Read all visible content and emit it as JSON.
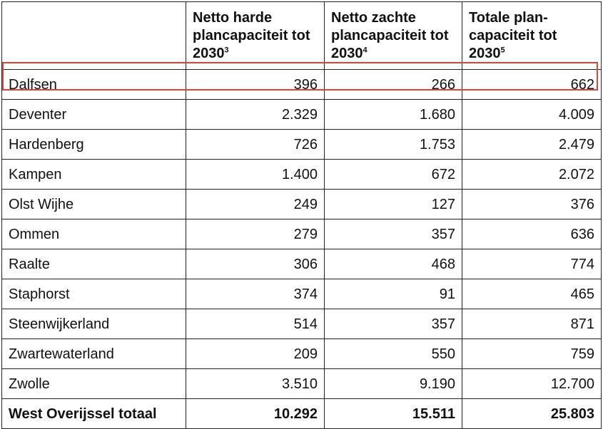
{
  "table": {
    "headers": [
      {
        "label": "",
        "sup": ""
      },
      {
        "label": "Netto harde plancapaciteit tot 2030",
        "sup": "3"
      },
      {
        "label": "Netto zachte plancapaciteit tot 2030",
        "sup": "4"
      },
      {
        "label": "Totale plan-capaciteit tot 2030",
        "sup": "5"
      }
    ],
    "rows": [
      {
        "name": "Dalfsen",
        "hard": "396",
        "soft": "266",
        "total": "662",
        "highlighted": true
      },
      {
        "name": "Deventer",
        "hard": "2.329",
        "soft": "1.680",
        "total": "4.009"
      },
      {
        "name": "Hardenberg",
        "hard": "726",
        "soft": "1.753",
        "total": "2.479"
      },
      {
        "name": "Kampen",
        "hard": "1.400",
        "soft": "672",
        "total": "2.072"
      },
      {
        "name": "Olst Wijhe",
        "hard": "249",
        "soft": "127",
        "total": "376"
      },
      {
        "name": "Ommen",
        "hard": "279",
        "soft": "357",
        "total": "636"
      },
      {
        "name": "Raalte",
        "hard": "306",
        "soft": "468",
        "total": "774"
      },
      {
        "name": "Staphorst",
        "hard": "374",
        "soft": "91",
        "total": "465"
      },
      {
        "name": "Steenwijkerland",
        "hard": "514",
        "soft": "357",
        "total": "871"
      },
      {
        "name": "Zwartewaterland",
        "hard": "209",
        "soft": "550",
        "total": "759"
      },
      {
        "name": "Zwolle",
        "hard": "3.510",
        "soft": "9.190",
        "total": "12.700"
      }
    ],
    "total_row": {
      "name": "West Overijssel totaal",
      "hard": "10.292",
      "soft": "15.511",
      "total": "25.803"
    }
  },
  "colors": {
    "highlight_border": "#d9463c",
    "grid": "#222222"
  }
}
